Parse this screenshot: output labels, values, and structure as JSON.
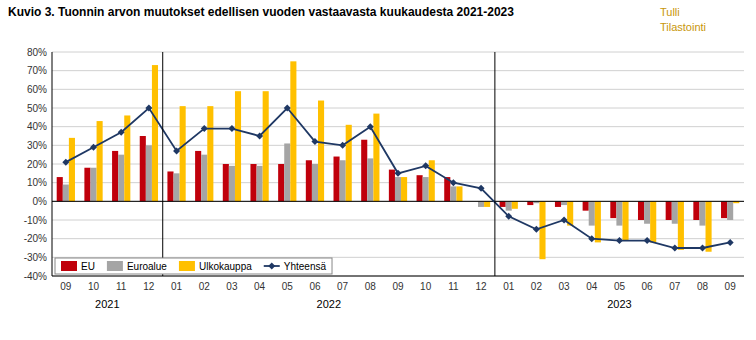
{
  "chart_data": {
    "type": "bar",
    "title": "Kuvio 3. Tuonnin arvon muutokset edellisen vuoden vastaavasta kuukaudesta 2021-2023",
    "annotations": [
      "Tulli",
      "Tilastointi"
    ],
    "categories": [
      "09",
      "10",
      "11",
      "12",
      "01",
      "02",
      "03",
      "04",
      "05",
      "06",
      "07",
      "08",
      "09",
      "10",
      "11",
      "12",
      "01",
      "02",
      "03",
      "04",
      "05",
      "06",
      "07",
      "08",
      "09"
    ],
    "groups": [
      {
        "label": "2021",
        "start": 0,
        "end": 3
      },
      {
        "label": "2022",
        "start": 4,
        "end": 15
      },
      {
        "label": "2023",
        "start": 16,
        "end": 24
      }
    ],
    "series": [
      {
        "name": "EU",
        "type": "bar",
        "color": "#c0000b",
        "values": [
          13,
          18,
          27,
          35,
          16,
          27,
          20,
          20,
          20,
          22,
          24,
          33,
          17,
          14,
          13,
          0,
          -3,
          -2,
          -3,
          -5,
          -9,
          -10,
          -10,
          -10,
          -9
        ]
      },
      {
        "name": "Euroalue",
        "type": "bar",
        "color": "#a5a5a5",
        "values": [
          9,
          18,
          25,
          30,
          15,
          25,
          19,
          19,
          31,
          20,
          22,
          23,
          13,
          13,
          8,
          -3,
          -5,
          -1,
          -2,
          -13,
          -13,
          -12,
          -12,
          -13,
          -10
        ]
      },
      {
        "name": "Ulkokauppa",
        "type": "bar",
        "color": "#ffc000",
        "values": [
          34,
          43,
          46,
          73,
          51,
          51,
          59,
          59,
          75,
          54,
          41,
          47,
          13,
          22,
          8,
          -3,
          -4,
          -31,
          -13,
          -22,
          -21,
          -22,
          -26,
          -27,
          -1
        ]
      },
      {
        "name": "Yhteensä",
        "type": "line",
        "color": "#1f3864",
        "marker": "diamond",
        "values": [
          21,
          29,
          37,
          50,
          27,
          39,
          39,
          35,
          50,
          32,
          30,
          40,
          15,
          19,
          10,
          7,
          -8,
          -15,
          -10,
          -20,
          -21,
          -21,
          -25,
          -25,
          -22
        ]
      }
    ],
    "ylim": [
      -40,
      80
    ],
    "yticks": [
      {
        "value": -40,
        "label": "-40%"
      },
      {
        "value": -30,
        "label": "-30%"
      },
      {
        "value": -20,
        "label": "-20%"
      },
      {
        "value": -10,
        "label": "-10%"
      },
      {
        "value": 0,
        "label": "0%"
      },
      {
        "value": 10,
        "label": "10%"
      },
      {
        "value": 20,
        "label": "20%"
      },
      {
        "value": 30,
        "label": "30%"
      },
      {
        "value": 40,
        "label": "40%"
      },
      {
        "value": 50,
        "label": "50%"
      },
      {
        "value": 60,
        "label": "60%"
      },
      {
        "value": 70,
        "label": "70%"
      },
      {
        "value": 80,
        "label": "80%"
      }
    ],
    "grid": true,
    "legend": "lower left"
  }
}
